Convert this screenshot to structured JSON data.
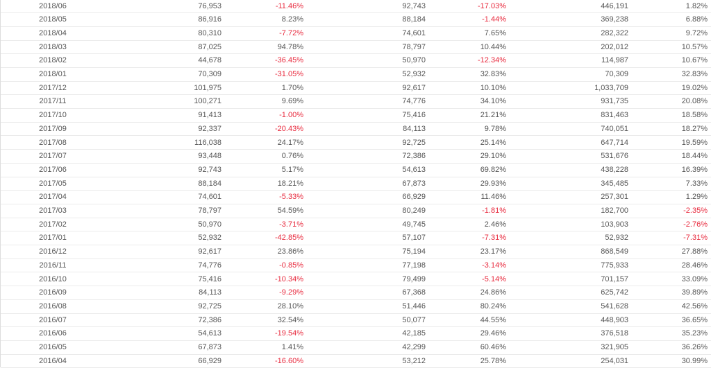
{
  "table": {
    "rows": [
      [
        "2018/06",
        "76,953",
        "-11.46%",
        "92,743",
        "-17.03%",
        "446,191",
        "1.82%"
      ],
      [
        "2018/05",
        "86,916",
        "8.23%",
        "88,184",
        "-1.44%",
        "369,238",
        "6.88%"
      ],
      [
        "2018/04",
        "80,310",
        "-7.72%",
        "74,601",
        "7.65%",
        "282,322",
        "9.72%"
      ],
      [
        "2018/03",
        "87,025",
        "94.78%",
        "78,797",
        "10.44%",
        "202,012",
        "10.57%"
      ],
      [
        "2018/02",
        "44,678",
        "-36.45%",
        "50,970",
        "-12.34%",
        "114,987",
        "10.67%"
      ],
      [
        "2018/01",
        "70,309",
        "-31.05%",
        "52,932",
        "32.83%",
        "70,309",
        "32.83%"
      ],
      [
        "2017/12",
        "101,975",
        "1.70%",
        "92,617",
        "10.10%",
        "1,033,709",
        "19.02%"
      ],
      [
        "2017/11",
        "100,271",
        "9.69%",
        "74,776",
        "34.10%",
        "931,735",
        "20.08%"
      ],
      [
        "2017/10",
        "91,413",
        "-1.00%",
        "75,416",
        "21.21%",
        "831,463",
        "18.58%"
      ],
      [
        "2017/09",
        "92,337",
        "-20.43%",
        "84,113",
        "9.78%",
        "740,051",
        "18.27%"
      ],
      [
        "2017/08",
        "116,038",
        "24.17%",
        "92,725",
        "25.14%",
        "647,714",
        "19.59%"
      ],
      [
        "2017/07",
        "93,448",
        "0.76%",
        "72,386",
        "29.10%",
        "531,676",
        "18.44%"
      ],
      [
        "2017/06",
        "92,743",
        "5.17%",
        "54,613",
        "69.82%",
        "438,228",
        "16.39%"
      ],
      [
        "2017/05",
        "88,184",
        "18.21%",
        "67,873",
        "29.93%",
        "345,485",
        "7.33%"
      ],
      [
        "2017/04",
        "74,601",
        "-5.33%",
        "66,929",
        "11.46%",
        "257,301",
        "1.29%"
      ],
      [
        "2017/03",
        "78,797",
        "54.59%",
        "80,249",
        "-1.81%",
        "182,700",
        "-2.35%"
      ],
      [
        "2017/02",
        "50,970",
        "-3.71%",
        "49,745",
        "2.46%",
        "103,903",
        "-2.76%"
      ],
      [
        "2017/01",
        "52,932",
        "-42.85%",
        "57,107",
        "-7.31%",
        "52,932",
        "-7.31%"
      ],
      [
        "2016/12",
        "92,617",
        "23.86%",
        "75,194",
        "23.17%",
        "868,549",
        "27.88%"
      ],
      [
        "2016/11",
        "74,776",
        "-0.85%",
        "77,198",
        "-3.14%",
        "775,933",
        "28.46%"
      ],
      [
        "2016/10",
        "75,416",
        "-10.34%",
        "79,499",
        "-5.14%",
        "701,157",
        "33.09%"
      ],
      [
        "2016/09",
        "84,113",
        "-9.29%",
        "67,368",
        "24.86%",
        "625,742",
        "39.89%"
      ],
      [
        "2016/08",
        "92,725",
        "28.10%",
        "51,446",
        "80.24%",
        "541,628",
        "42.56%"
      ],
      [
        "2016/07",
        "72,386",
        "32.54%",
        "50,077",
        "44.55%",
        "448,903",
        "36.65%"
      ],
      [
        "2016/06",
        "54,613",
        "-19.54%",
        "42,185",
        "29.46%",
        "376,518",
        "35.23%"
      ],
      [
        "2016/05",
        "67,873",
        "1.41%",
        "42,299",
        "60.46%",
        "321,905",
        "36.26%"
      ],
      [
        "2016/04",
        "66,929",
        "-16.60%",
        "53,212",
        "25.78%",
        "254,031",
        "30.99%"
      ]
    ]
  }
}
